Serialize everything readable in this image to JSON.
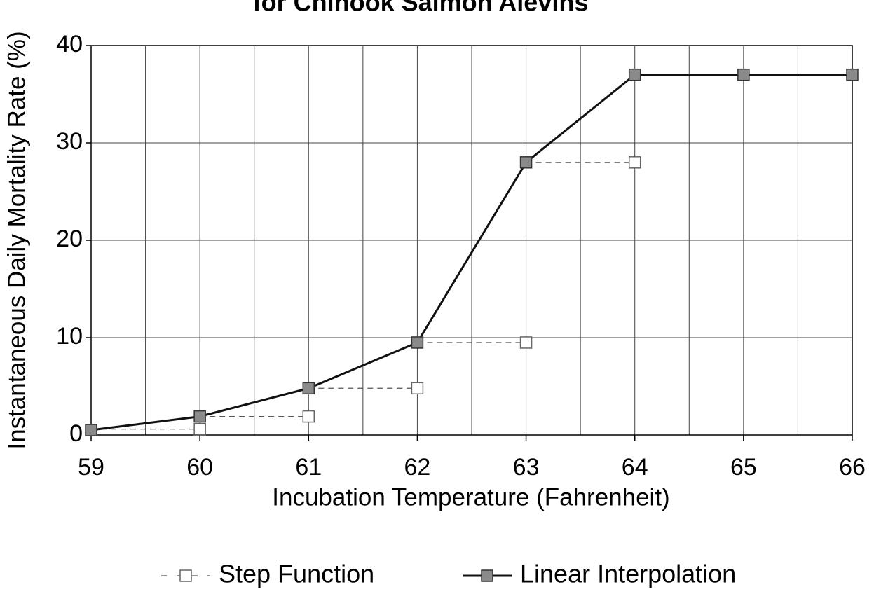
{
  "chart_data": {
    "type": "line",
    "title": "for Chinook Salmon Alevins",
    "xlabel": "Incubation Temperature (Fahrenheit)",
    "ylabel": "Instantaneous Daily Mortality Rate (%)",
    "xlim": [
      59,
      66
    ],
    "xticks": [
      59,
      60,
      61,
      62,
      63,
      64,
      65,
      66
    ],
    "xminorticks": [
      59.5,
      60.5,
      61.5,
      62.5,
      63.5,
      64.5,
      65.5
    ],
    "ylim": [
      0,
      40
    ],
    "yticks": [
      0,
      10,
      20,
      30,
      40
    ],
    "grid": true,
    "legend": "bottom",
    "series": [
      {
        "name": "Step Function",
        "color": "#ffffff",
        "style": "step",
        "x": [
          60,
          61,
          62,
          63,
          64
        ],
        "values": [
          0.6,
          1.9,
          4.8,
          9.5,
          28
        ]
      },
      {
        "name": "Linear Interpolation",
        "color": "#8a8a8a",
        "style": "solid",
        "x": [
          59,
          60,
          61,
          62,
          63,
          64,
          65,
          66
        ],
        "values": [
          0.5,
          1.9,
          4.8,
          9.5,
          28,
          37,
          37,
          37
        ]
      }
    ]
  }
}
